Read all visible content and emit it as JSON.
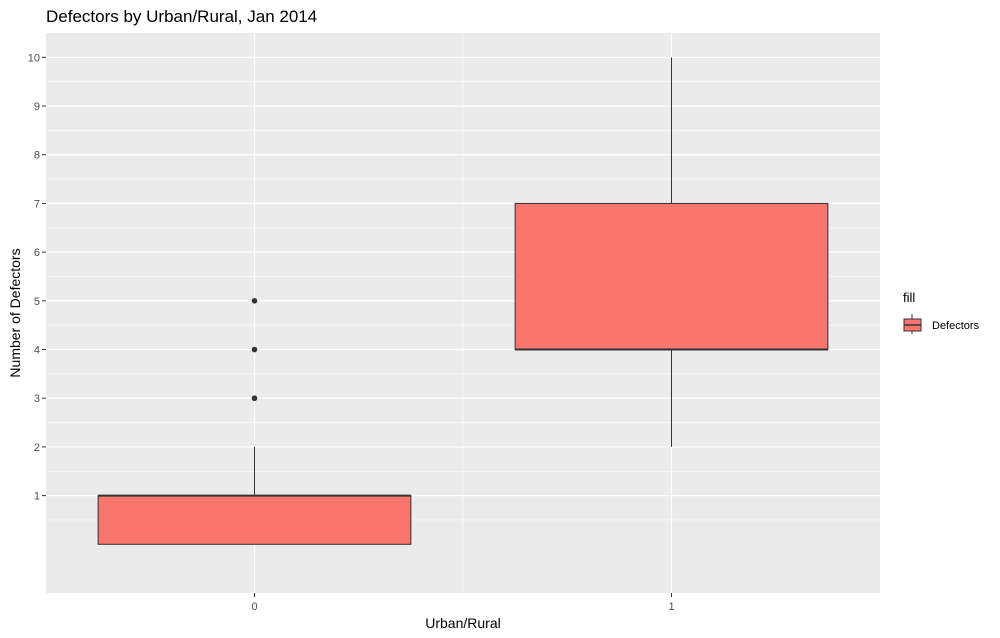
{
  "chart_data": {
    "type": "boxplot",
    "title": "Defectors by Urban/Rural, Jan 2014",
    "xlabel": "Urban/Rural",
    "ylabel": "Number of Defectors",
    "categories": [
      "0",
      "1"
    ],
    "y_ticks": [
      1,
      2,
      3,
      4,
      5,
      6,
      7,
      8,
      9,
      10
    ],
    "ylim": [
      -1,
      10.5
    ],
    "grid": true,
    "legend": {
      "title": "fill",
      "position": "right",
      "entries": [
        "Defectors"
      ]
    },
    "series": [
      {
        "name": "Defectors",
        "boxes": [
          {
            "category": "0",
            "min": 0,
            "q1": 0,
            "median": 1,
            "q3": 1,
            "max": 2,
            "outliers": [
              3,
              4,
              5
            ]
          },
          {
            "category": "1",
            "min": 2,
            "q1": 4,
            "median": 4,
            "q3": 7,
            "max": 10,
            "outliers": []
          }
        ]
      }
    ]
  },
  "colors": {
    "panel_background": "#ebebeb",
    "grid_line": "#ffffff",
    "box_fill": "#f8766d",
    "box_stroke": "#333333"
  }
}
